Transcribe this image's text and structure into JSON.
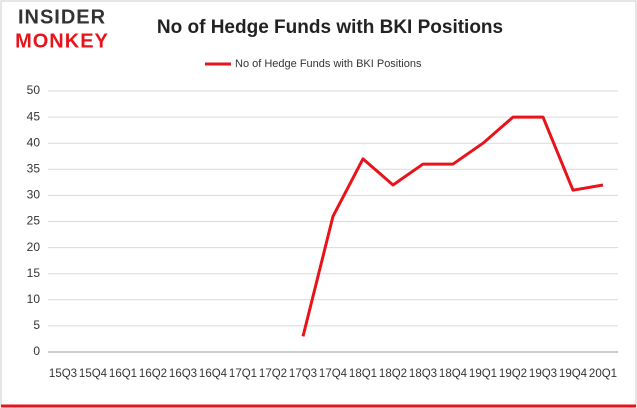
{
  "logo": {
    "line1": "INSIDER",
    "line2": "MONKEY"
  },
  "chart_data": {
    "type": "line",
    "title": "No of Hedge Funds with BKI Positions",
    "categories": [
      "15Q3",
      "15Q4",
      "16Q1",
      "16Q2",
      "16Q3",
      "16Q4",
      "17Q1",
      "17Q2",
      "17Q3",
      "17Q4",
      "18Q1",
      "18Q2",
      "18Q3",
      "18Q4",
      "19Q1",
      "19Q2",
      "19Q3",
      "19Q4",
      "20Q1"
    ],
    "series": [
      {
        "name": "No of Hedge Funds with BKI Positions",
        "color": "#e8141b",
        "values": [
          null,
          null,
          null,
          null,
          null,
          null,
          null,
          null,
          3,
          26,
          37,
          32,
          36,
          36,
          40,
          45,
          45,
          31,
          32
        ]
      }
    ],
    "ylim": [
      0,
      50
    ],
    "yticks": [
      0,
      5,
      10,
      15,
      20,
      25,
      30,
      35,
      40,
      45,
      50
    ],
    "grid": true,
    "legend": "top"
  }
}
